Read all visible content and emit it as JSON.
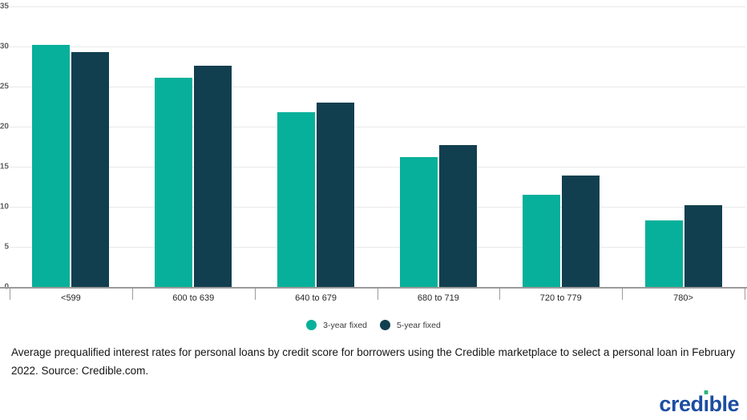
{
  "chart_data": {
    "type": "bar",
    "title": "",
    "xlabel": "",
    "ylabel": "",
    "categories": [
      "<599",
      "600 to 639",
      "640 to 679",
      "680 to 719",
      "720 to 779",
      "780>"
    ],
    "series": [
      {
        "name": "3-year fixed",
        "color": "#07b09a",
        "values": [
          30.2,
          26.1,
          21.8,
          16.2,
          11.5,
          8.3
        ]
      },
      {
        "name": "5-year fixed",
        "color": "#123f4f",
        "values": [
          29.3,
          27.6,
          23.0,
          17.7,
          13.9,
          10.2
        ]
      }
    ],
    "ylim": [
      0,
      35
    ],
    "y_ticks": [
      0,
      5,
      10,
      15,
      20,
      25,
      30,
      35
    ],
    "grid": true,
    "legend_position": "bottom",
    "gridline_color": "#e9e9e9",
    "axis_color": "#9b9b9b"
  },
  "legend": {
    "items": [
      {
        "label": "3-year fixed",
        "color": "#07b09a"
      },
      {
        "label": "5-year fixed",
        "color": "#123f4f"
      }
    ]
  },
  "caption": "Average prequalified interest rates for personal loans by credit score for borrowers using the Credible marketplace to select a personal loan in February 2022. Source: Credible.com.",
  "logo": {
    "full_text": "credible",
    "part_before_i": "cred",
    "dotless_i": "ı",
    "part_after_i": "ble",
    "blue": "#1c4da0",
    "green": "#2eb57d"
  }
}
